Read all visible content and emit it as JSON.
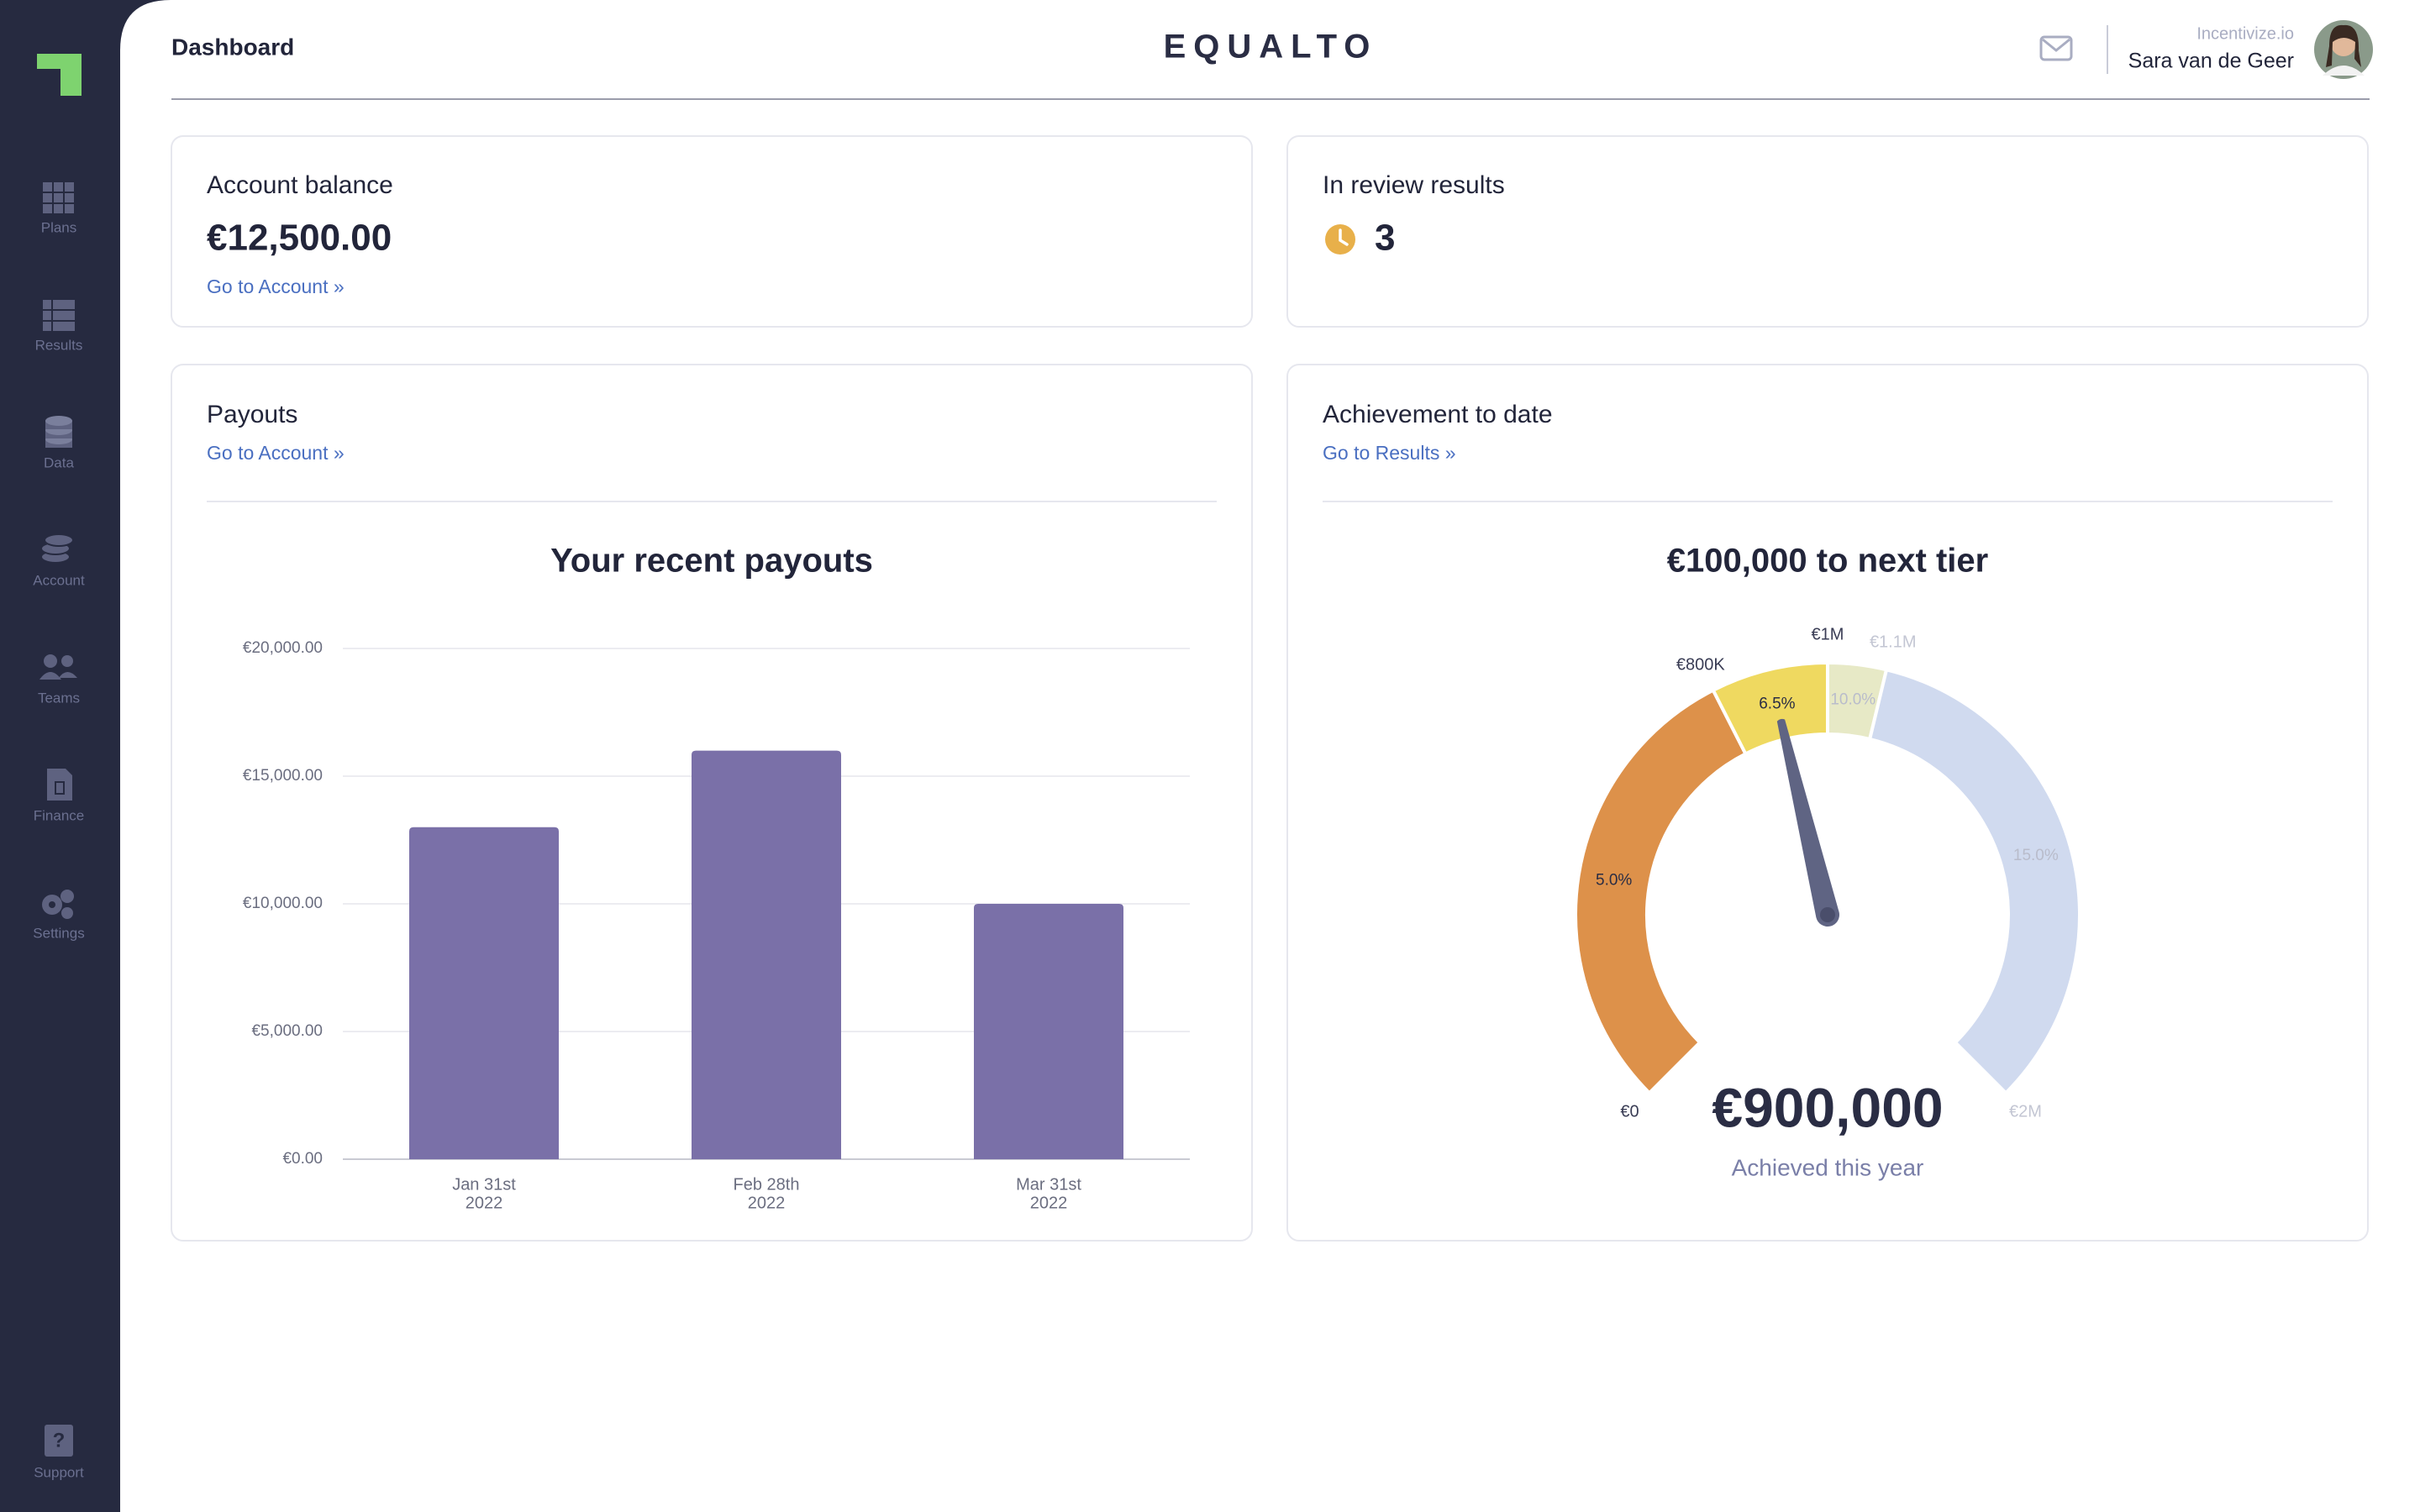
{
  "sidebar": {
    "items": [
      {
        "label": "Plans"
      },
      {
        "label": "Results"
      },
      {
        "label": "Data"
      },
      {
        "label": "Account"
      },
      {
        "label": "Teams"
      },
      {
        "label": "Finance"
      },
      {
        "label": "Settings"
      }
    ],
    "support": "Support"
  },
  "header": {
    "title": "Dashboard",
    "brand": "EQUALTO",
    "organization": "Incentivize.io",
    "user": "Sara van de Geer"
  },
  "cards": {
    "balance": {
      "title": "Account balance",
      "value": "€12,500.00",
      "link": "Go to Account »"
    },
    "review": {
      "title": "In review results",
      "count": 3
    },
    "payouts": {
      "title": "Payouts",
      "link": "Go to Account »"
    },
    "achievement": {
      "title": "Achievement to date",
      "link": "Go to Results »"
    }
  },
  "chart_data": [
    {
      "type": "bar",
      "title": "Your recent payouts",
      "categories": [
        [
          "Jan 31st",
          "2022"
        ],
        [
          "Feb 28th",
          "2022"
        ],
        [
          "Mar 31st",
          "2022"
        ]
      ],
      "values": [
        13000,
        16000,
        10000
      ],
      "color": "#7a70a8",
      "ylim": [
        0,
        20000
      ],
      "yticks": [
        {
          "value": 0,
          "label": "€0.00"
        },
        {
          "value": 5000,
          "label": "€5,000.00"
        },
        {
          "value": 10000,
          "label": "€10,000.00"
        },
        {
          "value": 15000,
          "label": "€15,000.00"
        },
        {
          "value": 20000,
          "label": "€20,000.00"
        }
      ],
      "grid": true
    },
    {
      "type": "gauge",
      "title": "€100,000 to next tier",
      "subtitle": "Achieved this year",
      "value": 900000,
      "value_label": "€900,000",
      "lim": [
        0,
        2000000
      ],
      "ticks": [
        {
          "value": 0,
          "label": "€0"
        },
        {
          "value": 800000,
          "label": "€800K"
        },
        {
          "value": 1000000,
          "label": "€1M"
        },
        {
          "value": 1100000,
          "label": "€1.1M"
        },
        {
          "value": 2000000,
          "label": "€2M"
        }
      ],
      "bands": [
        {
          "label": "5.0%",
          "color": "#dd914a"
        },
        {
          "label": "6.5%",
          "color": "#efd960"
        },
        {
          "label": "10.0%",
          "color": "#e7e9c6"
        },
        {
          "label": "15.0%",
          "color": "#d0daef"
        }
      ],
      "needle_color": "#5f6483"
    }
  ]
}
